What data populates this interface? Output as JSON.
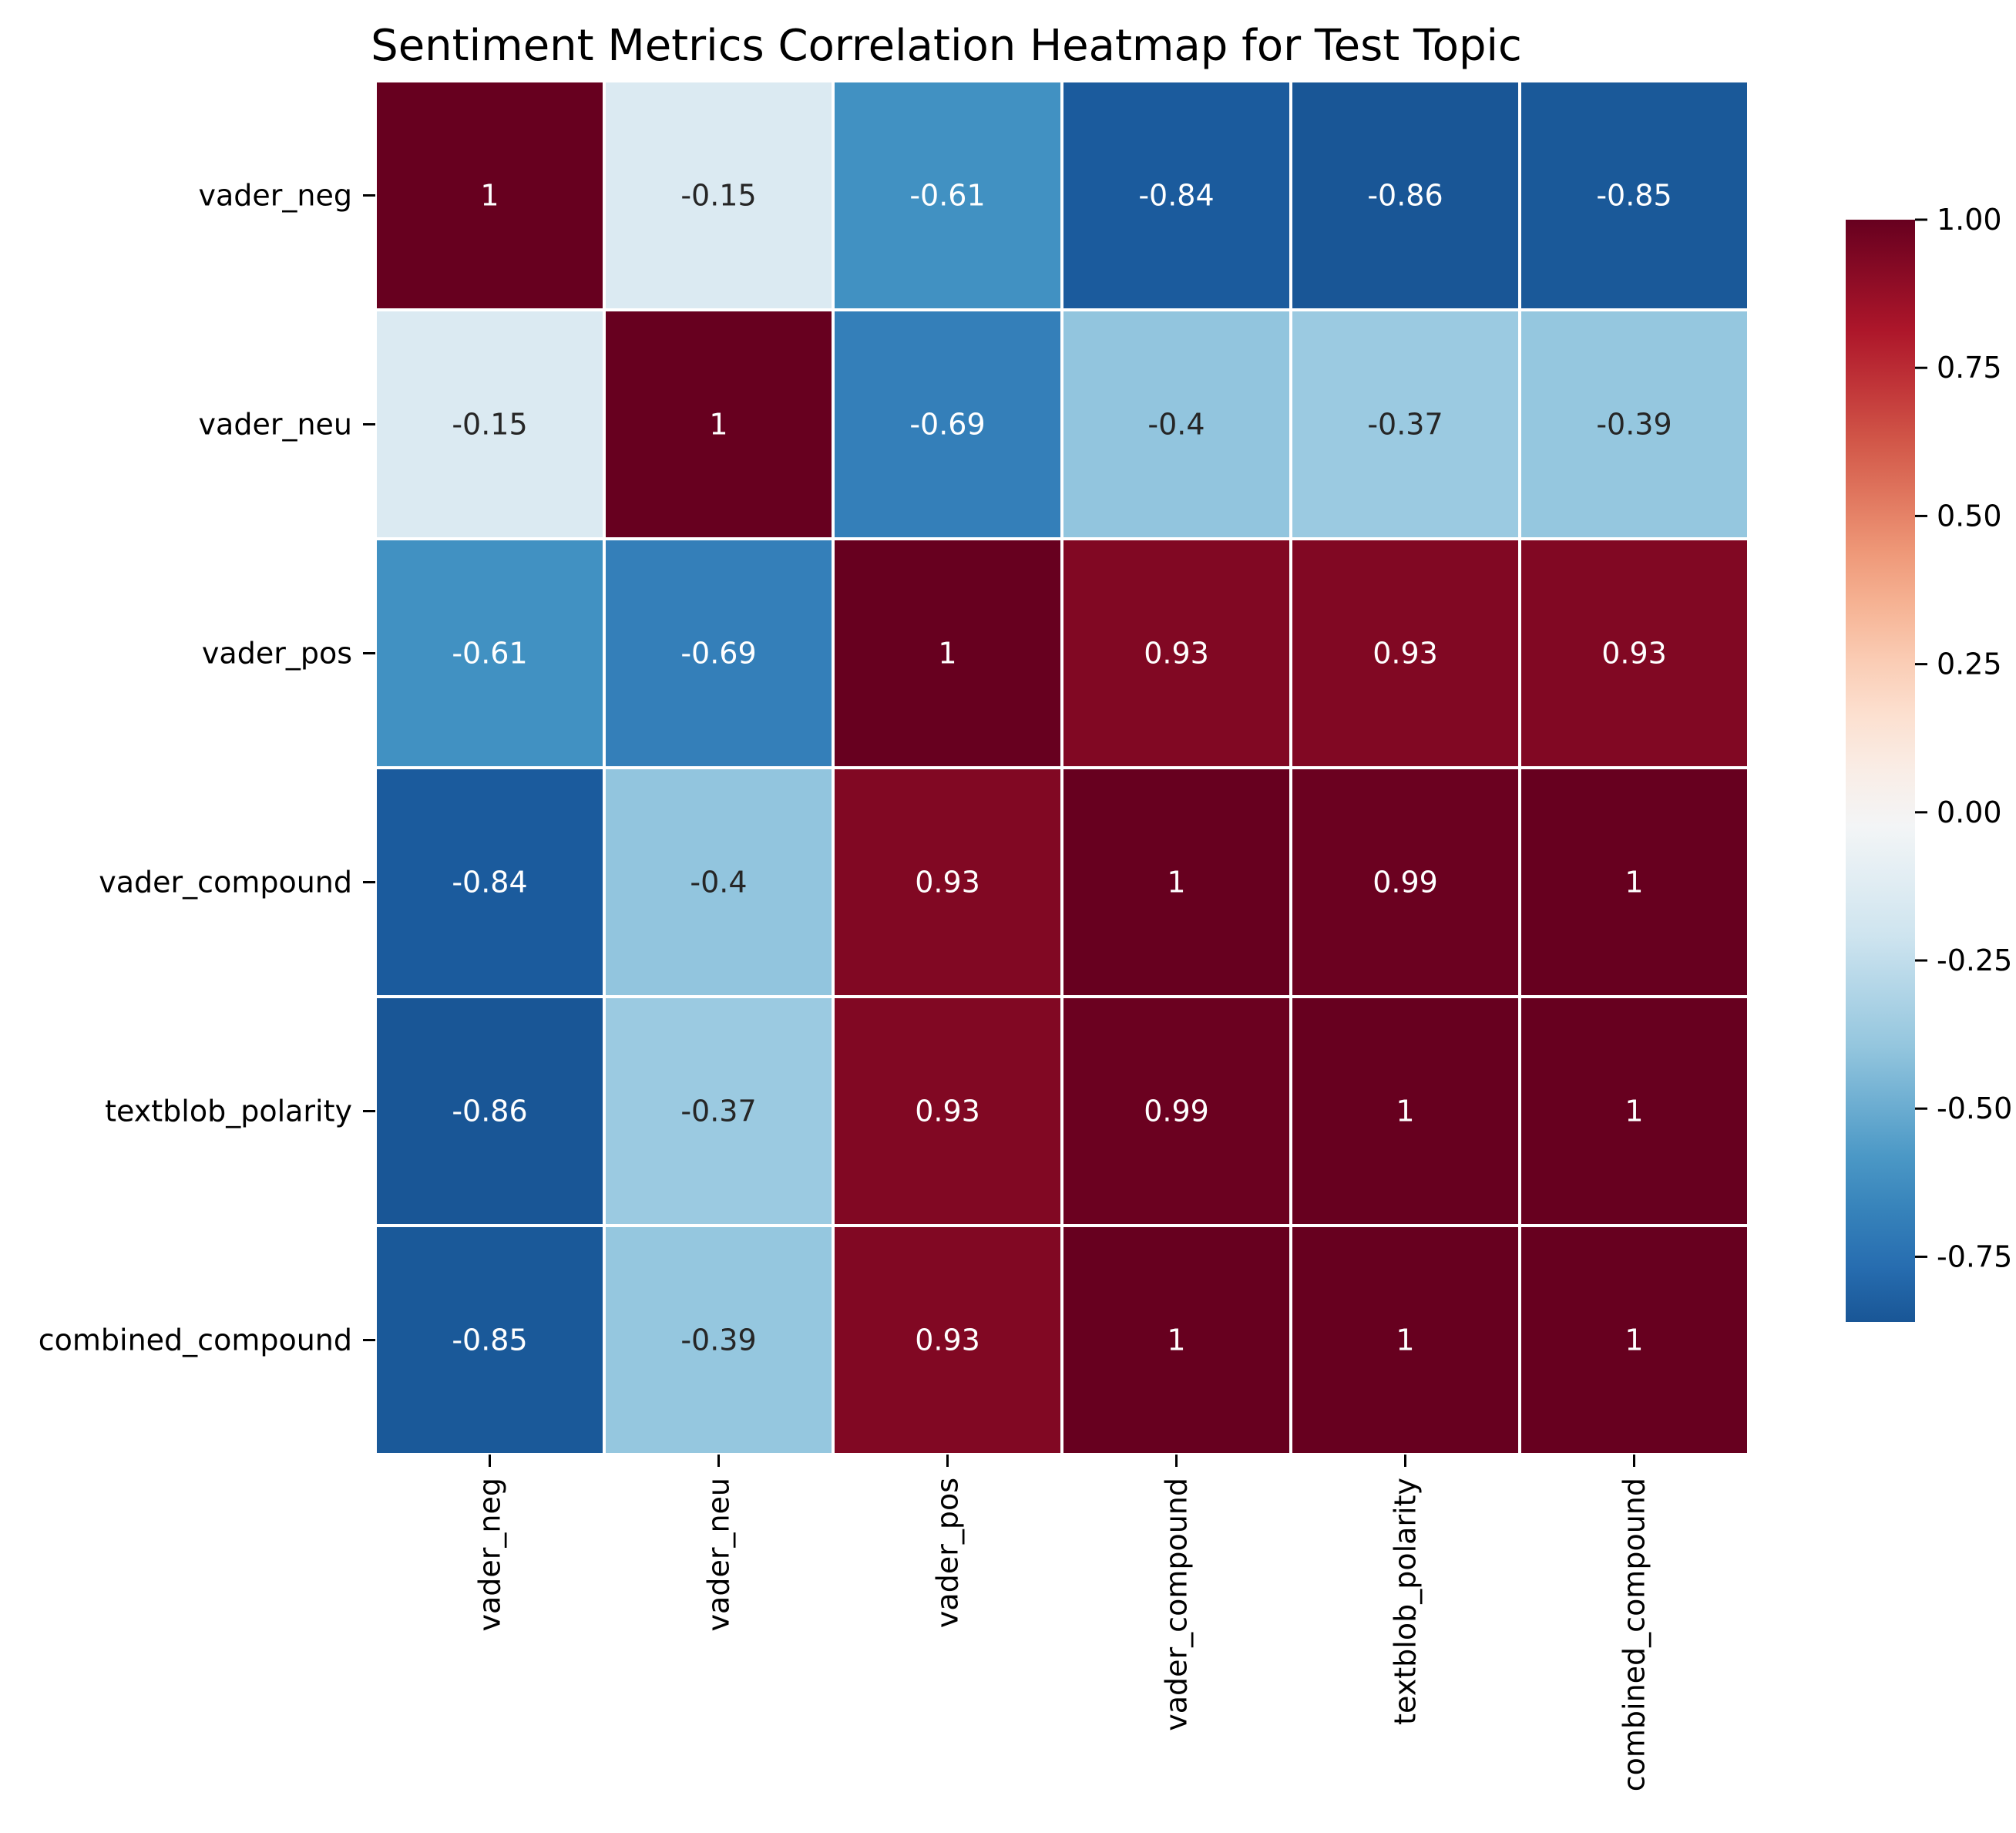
{
  "chart_data": {
    "type": "heatmap",
    "title": "Sentiment Metrics Correlation Heatmap for Test Topic",
    "xlabel": "",
    "ylabel": "",
    "rows": [
      "vader_neg",
      "vader_neu",
      "vader_pos",
      "vader_compound",
      "textblob_polarity",
      "combined_compound"
    ],
    "columns": [
      "vader_neg",
      "vader_neu",
      "vader_pos",
      "vader_compound",
      "textblob_polarity",
      "combined_compound"
    ],
    "values": [
      [
        1,
        -0.15,
        -0.61,
        -0.84,
        -0.86,
        -0.85
      ],
      [
        -0.15,
        1,
        -0.69,
        -0.4,
        -0.37,
        -0.39
      ],
      [
        -0.61,
        -0.69,
        1,
        0.93,
        0.93,
        0.93
      ],
      [
        -0.84,
        -0.4,
        0.93,
        1,
        0.99,
        1
      ],
      [
        -0.86,
        -0.37,
        0.93,
        0.99,
        1,
        1
      ],
      [
        -0.85,
        -0.39,
        0.93,
        1,
        1,
        1
      ]
    ],
    "colormap": "RdBu_r",
    "colorbar": {
      "range": [
        -0.86,
        1.0
      ],
      "ticks": [
        "1.00",
        "0.75",
        "0.50",
        "0.25",
        "0.00",
        "-0.25",
        "-0.50",
        "-0.75"
      ],
      "tick_values": [
        1.0,
        0.75,
        0.5,
        0.25,
        0.0,
        -0.25,
        -0.5,
        -0.75
      ]
    },
    "grid": true,
    "legend": "right"
  }
}
